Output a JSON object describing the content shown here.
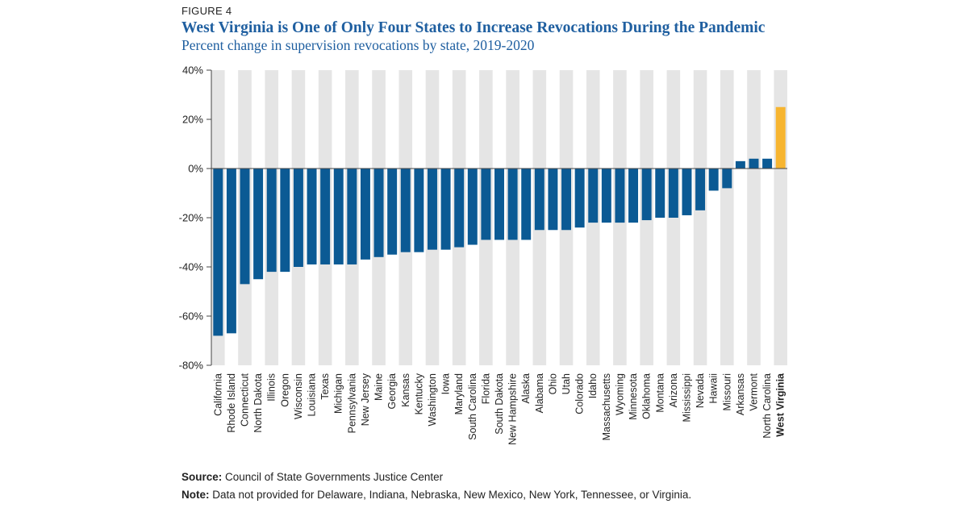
{
  "figure_label": "FIGURE 4",
  "title": "West Virginia is One of Only Four States to Increase Revocations During the Pandemic",
  "subtitle": "Percent change in supervision revocations by state, 2019-2020",
  "source_label": "Source:",
  "source_text": "Council of State Governments Justice Center",
  "note_label": "Note:",
  "note_text": "Data not provided for Delaware, Indiana, Nebraska, New Mexico, New York, Tennessee, or Virginia.",
  "colors": {
    "bar": "#0b5a94",
    "highlight": "#f7b530",
    "column_shade": "#e5e5e5",
    "axis": "#444444"
  },
  "chart_data": {
    "type": "bar",
    "title": "West Virginia is One of Only Four States to Increase Revocations During the Pandemic",
    "subtitle": "Percent change in supervision revocations by state, 2019-2020",
    "xlabel": "",
    "ylabel": "",
    "ylim": [
      -80,
      40
    ],
    "yticks": [
      40,
      20,
      0,
      -20,
      -40,
      -60,
      -80
    ],
    "ytick_labels": [
      "40%",
      "20%",
      "0%",
      "-20%",
      "-40%",
      "-60%",
      "-80%"
    ],
    "highlight_category": "West Virginia",
    "alternating_column_shading": true,
    "categories": [
      "California",
      "Rhode Island",
      "Connecticut",
      "North Dakota",
      "Illinois",
      "Oregon",
      "Wisconsin",
      "Louisiana",
      "Texas",
      "Michigan",
      "Pennsylvania",
      "New Jersey",
      "Maine",
      "Georgia",
      "Kansas",
      "Kentucky",
      "Washington",
      "Iowa",
      "Maryland",
      "South Carolina",
      "Florida",
      "South Dakota",
      "New Hampshire",
      "Alaska",
      "Alabama",
      "Ohio",
      "Utah",
      "Colorado",
      "Idaho",
      "Massachusetts",
      "Wyoming",
      "Minnesota",
      "Oklahoma",
      "Montana",
      "Arizona",
      "Mississippi",
      "Nevada",
      "Hawaii",
      "Missouri",
      "Arkansas",
      "Vermont",
      "North Carolina",
      "West Virginia"
    ],
    "values": [
      -68,
      -67,
      -47,
      -45,
      -42,
      -42,
      -40,
      -39,
      -39,
      -39,
      -39,
      -37,
      -36,
      -35,
      -34,
      -34,
      -33,
      -33,
      -32,
      -31,
      -29,
      -29,
      -29,
      -29,
      -25,
      -25,
      -25,
      -24,
      -22,
      -22,
      -22,
      -22,
      -21,
      -20,
      -20,
      -19,
      -17,
      -9,
      -8,
      3,
      4,
      4,
      25
    ]
  }
}
